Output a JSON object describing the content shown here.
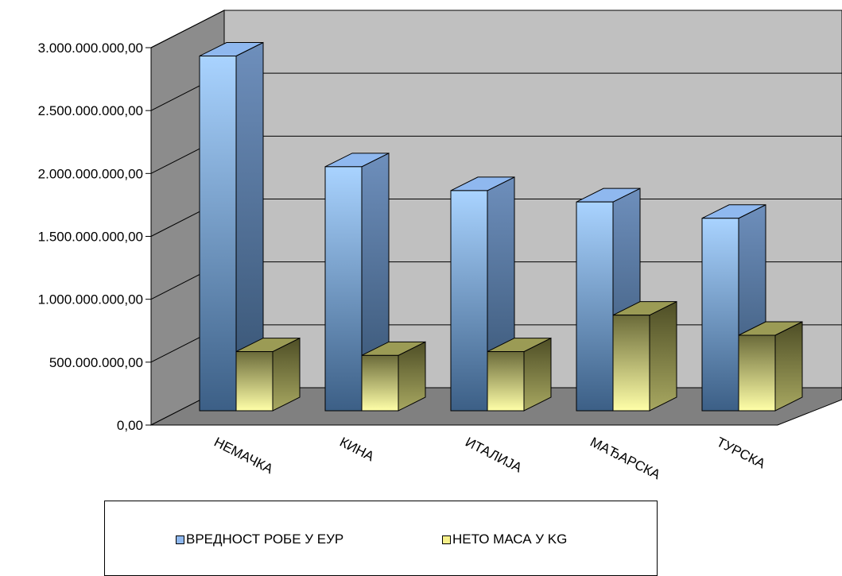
{
  "chart_data": {
    "type": "bar",
    "style": "3d-clustered-column",
    "categories": [
      "НЕМАЧКА",
      "КИНА",
      "ИТАЛИЈА",
      "МАЂАРСКА",
      "ТУРСКА"
    ],
    "series": [
      {
        "name": "ВРЕДНОСТ РОБЕ У ЕУР",
        "values": [
          2820000000,
          1940000000,
          1750000000,
          1660000000,
          1530000000
        ],
        "color": "#8fb8ef"
      },
      {
        "name": "НЕТО МАСА У KG",
        "values": [
          470000000,
          440000000,
          470000000,
          760000000,
          600000000
        ],
        "color": "#f6f08a"
      }
    ],
    "yticks": [
      "0,00",
      "500.000.000,00",
      "1.000.000.000,00",
      "1.500.000.000,00",
      "2.000.000.000,00",
      "2.500.000.000,00",
      "3.000.000.000,00"
    ],
    "ylim": [
      0,
      3000000000
    ],
    "grid": true,
    "legend_position": "bottom",
    "wall_color": "#c0c0c0",
    "floor_color": "#808080"
  }
}
